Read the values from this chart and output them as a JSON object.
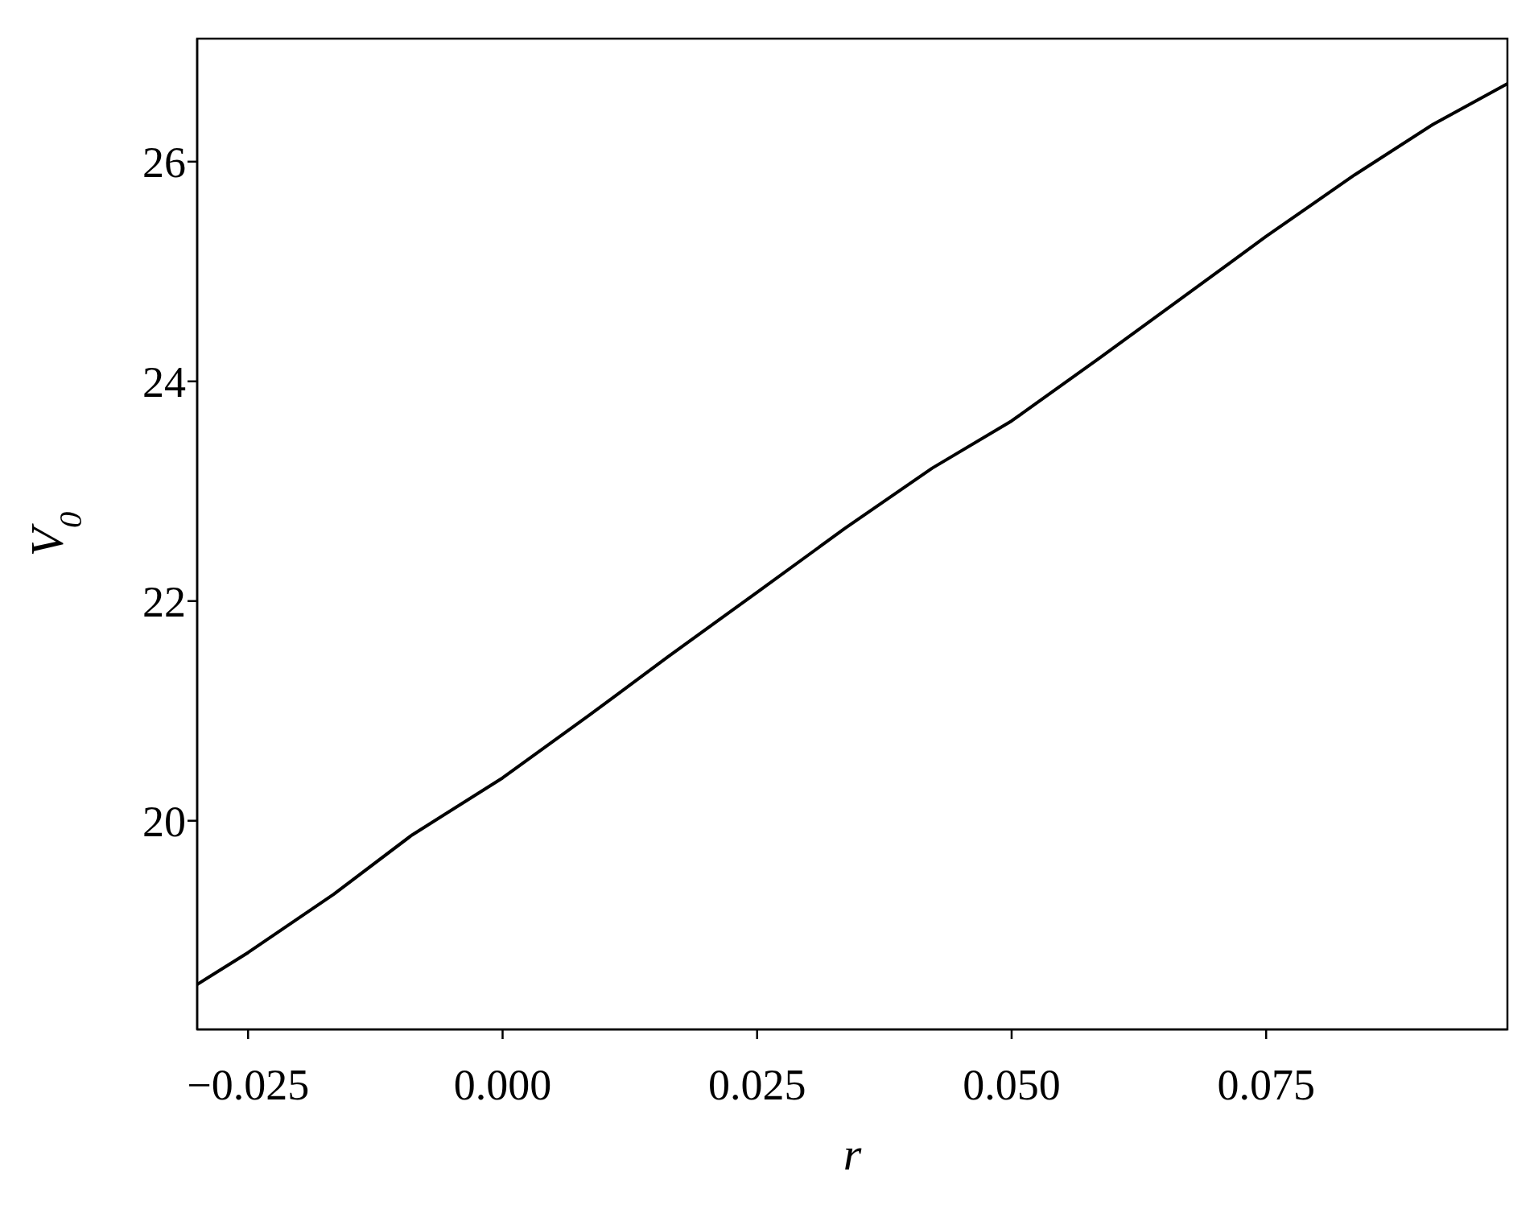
{
  "chart_data": {
    "type": "line",
    "xlabel": "r",
    "ylabel": "V$_{0}$",
    "x": [
      -0.03,
      -0.025,
      -0.0166,
      -0.0089,
      0,
      0.0085,
      0.0162,
      0.025,
      0.0336,
      0.0422,
      0.05,
      0.0586,
      0.0663,
      0.075,
      0.0837,
      0.0914,
      0.0987
    ],
    "series": [
      {
        "color": "#000000",
        "values": [
          18.51,
          18.8,
          19.33,
          19.87,
          20.39,
          20.96,
          21.49,
          22.08,
          22.66,
          23.21,
          23.64,
          24.21,
          24.73,
          25.32,
          25.88,
          26.34,
          26.71
        ]
      }
    ],
    "xlim": [
      -0.03,
      0.0987
    ],
    "ylim": [
      18.1,
      27.12
    ],
    "xticks": [
      {
        "value": -0.025,
        "label": "−0.025"
      },
      {
        "value": 0,
        "label": "0.000"
      },
      {
        "value": 0.025,
        "label": "0.025"
      },
      {
        "value": 0.05,
        "label": "0.050"
      },
      {
        "value": 0.075,
        "label": "0.075"
      }
    ],
    "yticks": [
      20,
      22,
      24,
      26
    ],
    "marker": "none",
    "line_style": "solid"
  }
}
